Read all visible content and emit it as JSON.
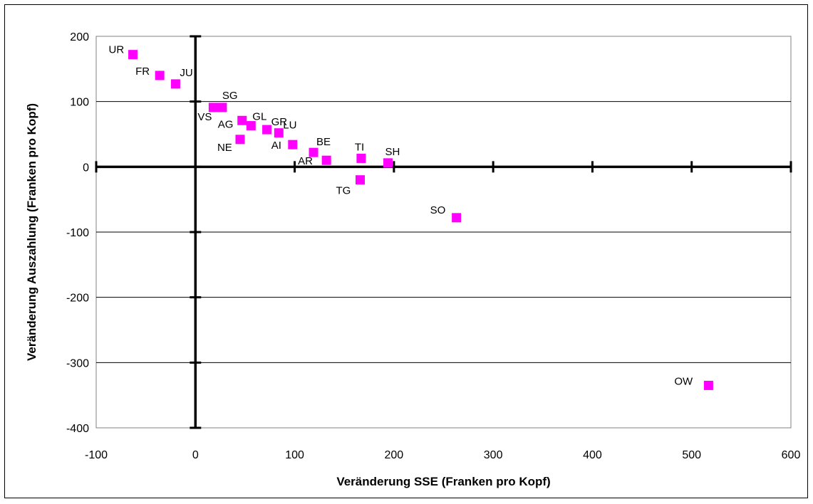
{
  "chart_data": {
    "type": "scatter",
    "title": "",
    "xlabel": "Veränderung SSE (Franken pro Kopf)",
    "ylabel": "Veränderung Auszahlung (Franken pro Kopf)",
    "xlim": [
      -100,
      600
    ],
    "ylim": [
      -400,
      200
    ],
    "xticks": [
      -100,
      0,
      100,
      200,
      300,
      400,
      500,
      600
    ],
    "yticks": [
      -400,
      -300,
      -200,
      -100,
      0,
      100,
      200
    ],
    "grid": "horizontal",
    "legend": "none",
    "marker_color": "#ff00ff",
    "points": [
      {
        "label": "UR",
        "x": -63,
        "y": 172
      },
      {
        "label": "FR",
        "x": -36,
        "y": 140
      },
      {
        "label": "JU",
        "x": -20,
        "y": 127
      },
      {
        "label": "VS",
        "x": 18,
        "y": 91
      },
      {
        "label": "SG",
        "x": 27,
        "y": 91
      },
      {
        "label": "AG",
        "x": 47,
        "y": 71
      },
      {
        "label": "GL",
        "x": 56,
        "y": 63
      },
      {
        "label": "NE",
        "x": 45,
        "y": 42
      },
      {
        "label": "GR",
        "x": 72,
        "y": 57
      },
      {
        "label": "LU",
        "x": 84,
        "y": 52
      },
      {
        "label": "AI",
        "x": 98,
        "y": 34
      },
      {
        "label": "BE",
        "x": 119,
        "y": 22
      },
      {
        "label": "AR",
        "x": 132,
        "y": 10
      },
      {
        "label": "TI",
        "x": 167,
        "y": 13
      },
      {
        "label": "SH",
        "x": 194,
        "y": 6
      },
      {
        "label": "TG",
        "x": 166,
        "y": -20
      },
      {
        "label": "SO",
        "x": 263,
        "y": -78
      },
      {
        "label": "OW",
        "x": 517,
        "y": -335
      }
    ]
  }
}
